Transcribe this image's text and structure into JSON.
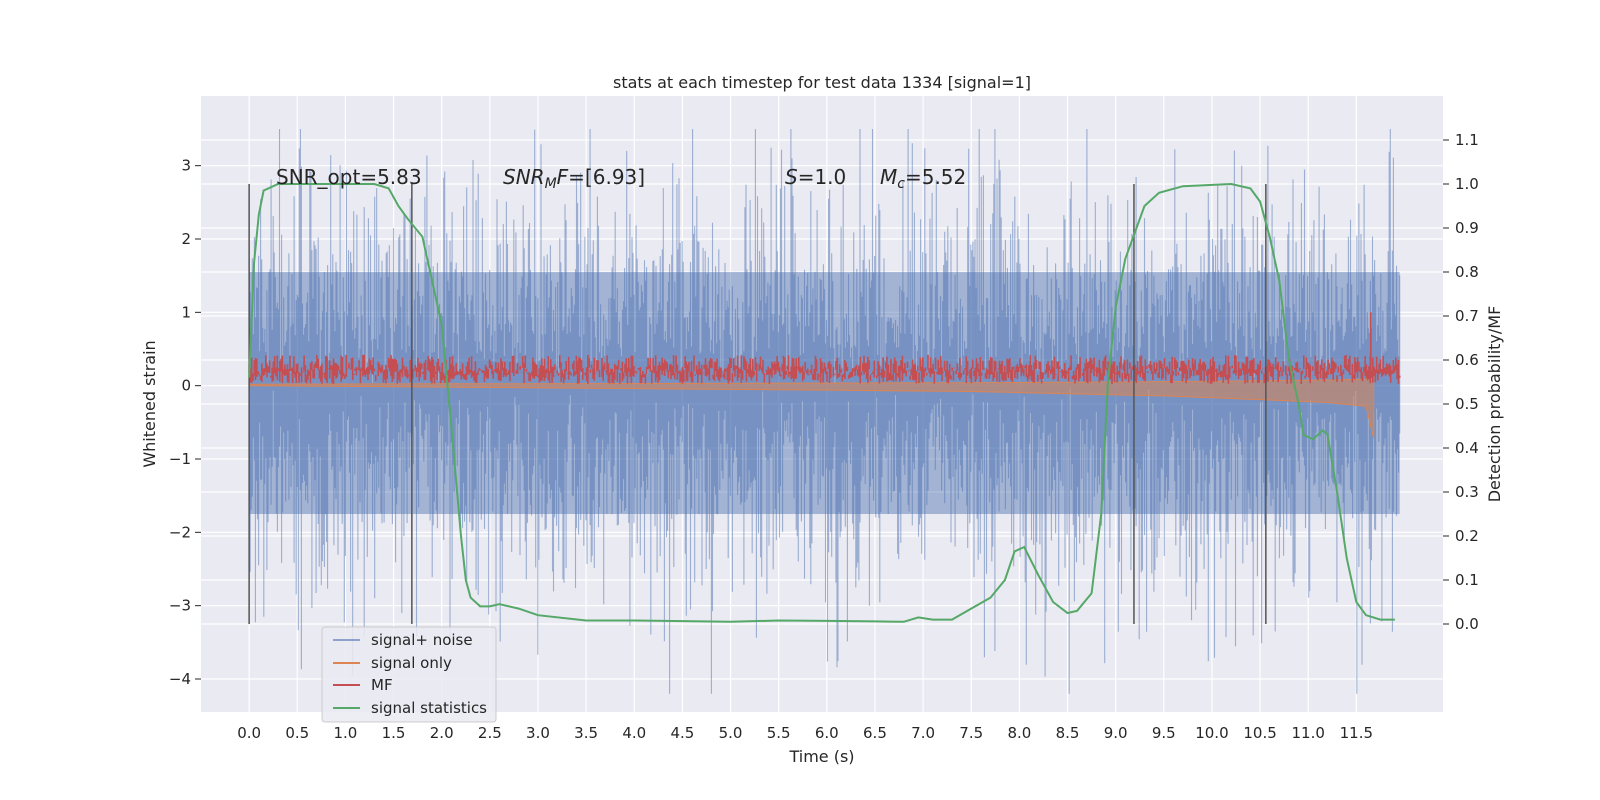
{
  "chart_data": {
    "type": "line",
    "title": "stats at each timestep for test data 1334 [signal=1]",
    "xlabel": "Time (s)",
    "ylabel": "Whitened strain",
    "ylabel_right": "Detection probability/MF",
    "xlim": [
      -0.5,
      12.4
    ],
    "ylim": [
      -4.45,
      3.95
    ],
    "ylim_right": [
      -0.2,
      1.2
    ],
    "x_ticks": [
      "0.0",
      "0.5",
      "1.0",
      "1.5",
      "2.0",
      "2.5",
      "3.0",
      "3.5",
      "4.0",
      "4.5",
      "5.0",
      "5.5",
      "6.0",
      "6.5",
      "7.0",
      "7.5",
      "8.0",
      "8.5",
      "9.0",
      "9.5",
      "10.0",
      "10.5",
      "11.0",
      "11.5"
    ],
    "y_ticks": [
      -4,
      -3,
      -2,
      -1,
      0,
      1,
      2,
      3
    ],
    "y_ticks_right": [
      "0.0",
      "0.1",
      "0.2",
      "0.3",
      "0.4",
      "0.5",
      "0.6",
      "0.7",
      "0.8",
      "0.9",
      "1.0",
      "1.1"
    ],
    "grid": true,
    "legend_position": "lower-left",
    "annotations": {
      "snr_opt": "SNR_opt=5.83",
      "snr_mf_sym": "SNR",
      "snr_mf_sub": "M",
      "snr_mf_rest": "F=[6.93]",
      "s_sym": "S",
      "s_rest": "=1.0",
      "mc_sym": "M",
      "mc_sub": "c",
      "mc_rest": "=5.52"
    },
    "vertical_markers": [
      0.0,
      1.69,
      9.19,
      10.56
    ],
    "series": [
      {
        "name": "signal+ noise",
        "axis": "left",
        "color": "#4c72b0",
        "style": "noise",
        "time_range": [
          0.0,
          11.95
        ],
        "amplitude": 1.0,
        "envelope": [
          2.6,
          -3.3
        ]
      },
      {
        "name": "signal only",
        "axis": "left",
        "color": "#dd8452",
        "style": "chirp",
        "time_range": [
          0.0,
          11.68
        ],
        "points": [
          [
            0.0,
            0.0
          ],
          [
            2.0,
            -0.02
          ],
          [
            4.0,
            -0.04
          ],
          [
            6.0,
            -0.06
          ],
          [
            7.5,
            -0.08
          ],
          [
            8.5,
            -0.11
          ],
          [
            9.5,
            -0.14
          ],
          [
            10.5,
            -0.19
          ],
          [
            11.2,
            -0.23
          ],
          [
            11.6,
            -0.28
          ],
          [
            11.68,
            -0.72
          ]
        ]
      },
      {
        "name": "MF",
        "axis": "left",
        "color": "#c44e52",
        "style": "band",
        "time_range": [
          0.0,
          11.95
        ],
        "center": 0.22,
        "spread": 0.22,
        "spike": [
          11.65,
          1.0
        ]
      },
      {
        "name": "signal statistics",
        "axis": "right",
        "color": "#55a868",
        "style": "line",
        "points": [
          [
            0.0,
            0.56
          ],
          [
            0.05,
            0.82
          ],
          [
            0.1,
            0.93
          ],
          [
            0.15,
            0.985
          ],
          [
            0.3,
            1.0
          ],
          [
            1.3,
            1.0
          ],
          [
            1.45,
            0.99
          ],
          [
            1.55,
            0.95
          ],
          [
            1.65,
            0.92
          ],
          [
            1.8,
            0.88
          ],
          [
            1.9,
            0.78
          ],
          [
            2.0,
            0.68
          ],
          [
            2.1,
            0.45
          ],
          [
            2.2,
            0.2
          ],
          [
            2.25,
            0.1
          ],
          [
            2.3,
            0.06
          ],
          [
            2.4,
            0.04
          ],
          [
            2.5,
            0.04
          ],
          [
            2.6,
            0.045
          ],
          [
            2.8,
            0.035
          ],
          [
            3.0,
            0.02
          ],
          [
            3.5,
            0.008
          ],
          [
            4.0,
            0.008
          ],
          [
            5.0,
            0.005
          ],
          [
            5.5,
            0.008
          ],
          [
            6.0,
            0.007
          ],
          [
            6.5,
            0.006
          ],
          [
            6.8,
            0.005
          ],
          [
            6.95,
            0.015
          ],
          [
            7.1,
            0.01
          ],
          [
            7.3,
            0.01
          ],
          [
            7.5,
            0.035
          ],
          [
            7.7,
            0.06
          ],
          [
            7.85,
            0.1
          ],
          [
            7.95,
            0.165
          ],
          [
            8.05,
            0.175
          ],
          [
            8.2,
            0.11
          ],
          [
            8.35,
            0.05
          ],
          [
            8.5,
            0.025
          ],
          [
            8.6,
            0.03
          ],
          [
            8.75,
            0.07
          ],
          [
            8.85,
            0.25
          ],
          [
            8.92,
            0.55
          ],
          [
            9.0,
            0.72
          ],
          [
            9.1,
            0.83
          ],
          [
            9.2,
            0.89
          ],
          [
            9.3,
            0.95
          ],
          [
            9.45,
            0.98
          ],
          [
            9.7,
            0.995
          ],
          [
            10.2,
            1.0
          ],
          [
            10.4,
            0.99
          ],
          [
            10.5,
            0.96
          ],
          [
            10.6,
            0.88
          ],
          [
            10.7,
            0.78
          ],
          [
            10.8,
            0.6
          ],
          [
            10.9,
            0.5
          ],
          [
            10.95,
            0.43
          ],
          [
            11.05,
            0.42
          ],
          [
            11.15,
            0.44
          ],
          [
            11.2,
            0.43
          ],
          [
            11.3,
            0.3
          ],
          [
            11.4,
            0.15
          ],
          [
            11.5,
            0.05
          ],
          [
            11.6,
            0.02
          ],
          [
            11.75,
            0.01
          ],
          [
            11.9,
            0.01
          ]
        ]
      }
    ]
  }
}
